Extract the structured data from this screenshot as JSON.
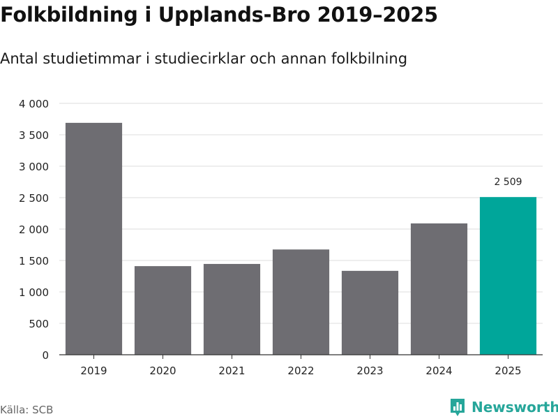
{
  "header": {
    "title": "Folkbildning i Upplands-Bro 2019–2025",
    "subtitle": "Antal studietimmar i studiecirklar och annan folkbilning"
  },
  "footer": {
    "source": "Källa: SCB",
    "brand_name": "Newsworthy",
    "brand_icon": "bar-chart-logo-icon"
  },
  "colors": {
    "bar": "#6e6d72",
    "highlight": "#00a69a",
    "grid": "#dcdcdc",
    "axis": "#333333",
    "text": "#222222",
    "brand": "#26a69a"
  },
  "chart_data": {
    "type": "bar",
    "title": "Folkbildning i Upplands-Bro 2019–2025",
    "subtitle": "Antal studietimmar i studiecirklar och annan folkbilning",
    "xlabel": "",
    "ylabel": "",
    "categories": [
      "2019",
      "2020",
      "2021",
      "2022",
      "2023",
      "2024",
      "2025"
    ],
    "values": [
      3690,
      1410,
      1445,
      1675,
      1335,
      2090,
      2509
    ],
    "highlight_index": 6,
    "data_labels": [
      {
        "index": 6,
        "text": "2 509"
      }
    ],
    "yticks": [
      0,
      500,
      1000,
      1500,
      2000,
      2500,
      3000,
      3500,
      4000
    ],
    "ytick_labels": [
      "0",
      "500",
      "1 000",
      "1 500",
      "2 000",
      "2 500",
      "3 000",
      "3 500",
      "4 000"
    ],
    "ylim": [
      0,
      4000
    ],
    "grid": true,
    "legend": "none"
  }
}
